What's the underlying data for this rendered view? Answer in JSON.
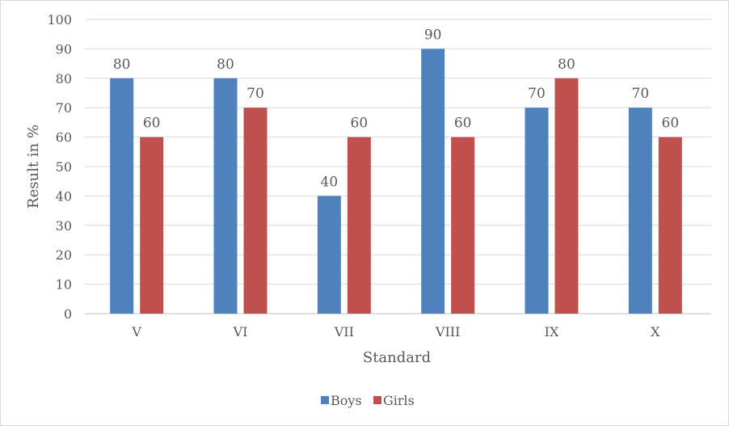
{
  "chart_data": {
    "type": "bar",
    "title": "",
    "xlabel": "Standard",
    "ylabel": "Result in %",
    "ylim": [
      0,
      100
    ],
    "yticks": [
      0,
      10,
      20,
      30,
      40,
      50,
      60,
      70,
      80,
      90,
      100
    ],
    "grid": true,
    "legend_position": "bottom",
    "categories": [
      "V",
      "VI",
      "VII",
      "VIII",
      "IX",
      "X"
    ],
    "series": [
      {
        "name": "Boys",
        "color": "#4F81BD",
        "values": [
          80,
          80,
          40,
          90,
          70,
          70
        ]
      },
      {
        "name": "Girls",
        "color": "#C0504D",
        "values": [
          60,
          70,
          60,
          60,
          80,
          60
        ]
      }
    ]
  }
}
